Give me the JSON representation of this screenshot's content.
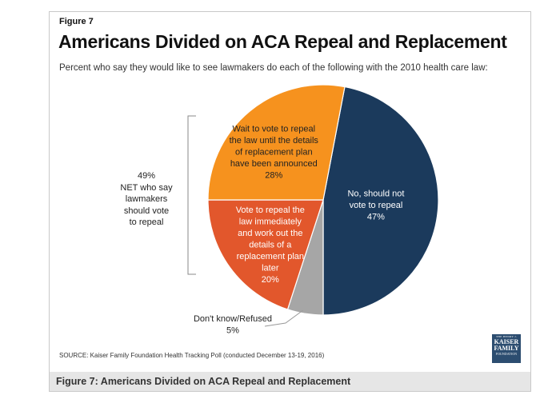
{
  "figure_label": "Figure 7",
  "source_note": "SOURCE: Kaiser Family Foundation Health Tracking Poll (conducted December 13-19, 2016)",
  "caption": "Figure 7: Americans Divided on ACA Repeal and Replacement",
  "net_annotation": {
    "lines": [
      "49%",
      "NET who say",
      "lawmakers",
      "should vote",
      "to repeal"
    ]
  },
  "logo": {
    "small": "THE HENRY J.",
    "line1": "KAISER",
    "line2": "FAMILY",
    "found": "FOUNDATION"
  },
  "chart_data": {
    "type": "pie",
    "title": "Americans Divided on ACA Repeal and Replacement",
    "subtitle": "Percent who say they would like to see lawmakers do each of the following with the 2010 health care law:",
    "slices": [
      {
        "label_lines": [
          "No, should not",
          "vote to repeal"
        ],
        "value": 47,
        "value_label": "47%",
        "color": "#1b3a5c",
        "text_color": "#ffffff"
      },
      {
        "label_lines": [
          "Don't know/Refused"
        ],
        "value": 5,
        "value_label": "5%",
        "color": "#a6a6a6",
        "text_color": "#222222"
      },
      {
        "label_lines": [
          "Vote to repeal the",
          "law immediately",
          "and work out the",
          "details of a",
          "replacement plan",
          "later"
        ],
        "value": 20,
        "value_label": "20%",
        "color": "#e2572c",
        "text_color": "#ffffff"
      },
      {
        "label_lines": [
          "Wait to vote to repeal",
          "the law until the details",
          "of replacement plan",
          "have been announced"
        ],
        "value": 28,
        "value_label": "28%",
        "color": "#f6921e",
        "text_color": "#222222"
      }
    ]
  }
}
